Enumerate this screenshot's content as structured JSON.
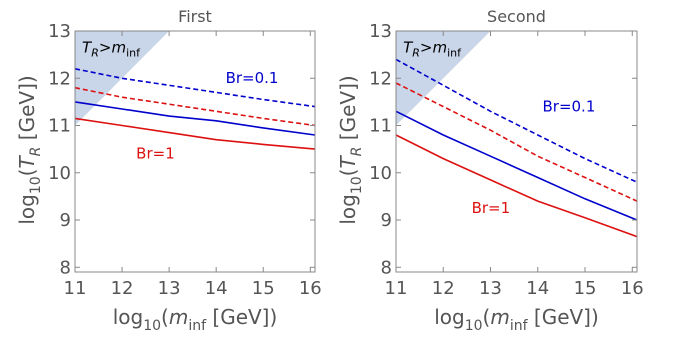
{
  "chart_data": [
    {
      "type": "line",
      "title": "First",
      "xlabel": "log10(minf [GeV])",
      "ylabel": "log10(TR [GeV])",
      "xlim": [
        11,
        16.1
      ],
      "ylim": [
        7.9,
        13
      ],
      "xticks": [
        "11",
        "12",
        "13",
        "14",
        "15",
        "16"
      ],
      "yticks": [
        "8",
        "9",
        "10",
        "11",
        "12",
        "13"
      ],
      "grid": false,
      "excluded_region": {
        "label": "TR>minf",
        "boundary": [
          [
            11,
            11.0
          ],
          [
            13.0,
            13.0
          ]
        ],
        "color": "#c9d5e8"
      },
      "series": [
        {
          "color": "#0000cc",
          "style": "dashed",
          "x": [
            11,
            12,
            13,
            14,
            15,
            16.1
          ],
          "y": [
            12.2,
            12.0,
            11.85,
            11.7,
            11.55,
            11.4
          ]
        },
        {
          "color": "#dd1111",
          "style": "dashed",
          "x": [
            11,
            12,
            13,
            14,
            15,
            16.1
          ],
          "y": [
            11.8,
            11.6,
            11.45,
            11.3,
            11.15,
            11.0
          ]
        },
        {
          "color": "#0000cc",
          "style": "solid",
          "x": [
            11,
            12,
            13,
            14,
            15,
            16.1
          ],
          "y": [
            11.5,
            11.35,
            11.2,
            11.1,
            10.95,
            10.8
          ]
        },
        {
          "color": "#dd1111",
          "style": "solid",
          "x": [
            11,
            12,
            13,
            14,
            15,
            16.1
          ],
          "y": [
            11.15,
            11.0,
            10.85,
            10.7,
            10.6,
            10.5
          ]
        }
      ],
      "annotations": [
        {
          "text": "TR>minf",
          "x": 11.15,
          "y": 12.55,
          "color": "#000000"
        },
        {
          "text": "Br=0.1",
          "x": 14.2,
          "y": 11.9,
          "color": "#0000cc"
        },
        {
          "text": "Br=1",
          "x": 12.3,
          "y": 10.3,
          "color": "#dd1111"
        }
      ]
    },
    {
      "type": "line",
      "title": "Second",
      "xlabel": "log10(minf [GeV])",
      "ylabel": "log10(TR [GeV])",
      "xlim": [
        11,
        16.1
      ],
      "ylim": [
        7.9,
        13
      ],
      "xticks": [
        "11",
        "12",
        "13",
        "14",
        "15",
        "16"
      ],
      "yticks": [
        "8",
        "9",
        "10",
        "11",
        "12",
        "13"
      ],
      "grid": false,
      "excluded_region": {
        "label": "TR>minf",
        "boundary": [
          [
            11,
            11.0
          ],
          [
            13.0,
            13.0
          ]
        ],
        "color": "#c9d5e8"
      },
      "series": [
        {
          "color": "#0000cc",
          "style": "dashed",
          "x": [
            11,
            12,
            13,
            14,
            15,
            16.1
          ],
          "y": [
            12.4,
            11.85,
            11.3,
            10.8,
            10.3,
            9.8
          ]
        },
        {
          "color": "#dd1111",
          "style": "dashed",
          "x": [
            11,
            12,
            13,
            14,
            15,
            16.1
          ],
          "y": [
            11.9,
            11.4,
            10.9,
            10.35,
            9.9,
            9.4
          ]
        },
        {
          "color": "#0000cc",
          "style": "solid",
          "x": [
            11,
            12,
            13,
            14,
            15,
            16.1
          ],
          "y": [
            11.3,
            10.8,
            10.35,
            9.9,
            9.45,
            9.0
          ]
        },
        {
          "color": "#dd1111",
          "style": "solid",
          "x": [
            11,
            12,
            13,
            14,
            15,
            16.1
          ],
          "y": [
            10.8,
            10.3,
            9.85,
            9.4,
            9.05,
            8.65
          ]
        }
      ],
      "annotations": [
        {
          "text": "TR>minf",
          "x": 11.15,
          "y": 12.55,
          "color": "#000000"
        },
        {
          "text": "Br=0.1",
          "x": 14.1,
          "y": 11.3,
          "color": "#0000cc"
        },
        {
          "text": "Br=1",
          "x": 12.6,
          "y": 9.15,
          "color": "#dd1111"
        }
      ]
    }
  ]
}
